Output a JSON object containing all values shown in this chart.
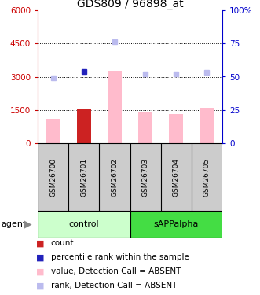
{
  "title": "GDS809 / 96898_at",
  "samples": [
    "GSM26700",
    "GSM26701",
    "GSM26702",
    "GSM26703",
    "GSM26704",
    "GSM26705"
  ],
  "bar_values": [
    1100,
    1530,
    3280,
    1380,
    1310,
    1580
  ],
  "bar_is_dark": [
    false,
    true,
    false,
    false,
    false,
    false
  ],
  "bar_color_light": "#ffbbcc",
  "bar_color_dark": "#cc2222",
  "rank_values": [
    2960,
    3220,
    4590,
    3140,
    3140,
    3180
  ],
  "rank_is_dark": [
    false,
    true,
    false,
    false,
    false,
    false
  ],
  "rank_color_light": "#bbbbee",
  "rank_color_dark": "#2222bb",
  "ylim_left": [
    0,
    6000
  ],
  "ylim_right": [
    0,
    100
  ],
  "yticks_left": [
    0,
    1500,
    3000,
    4500,
    6000
  ],
  "ytick_labels_left": [
    "0",
    "1500",
    "3000",
    "4500",
    "6000"
  ],
  "yticks_right": [
    0,
    25,
    50,
    75,
    100
  ],
  "ytick_labels_right": [
    "0",
    "25",
    "50",
    "75",
    "100%"
  ],
  "left_axis_color": "#cc0000",
  "right_axis_color": "#0000cc",
  "grid_yticks": [
    1500,
    3000,
    4500
  ],
  "control_label": "control",
  "sapp_label": "sAPPalpha",
  "control_color": "#ccffcc",
  "sapp_color": "#44dd44",
  "agent_label": "agent",
  "sample_label_bg": "#cccccc",
  "legend": [
    {
      "label": "count",
      "color": "#cc2222"
    },
    {
      "label": "percentile rank within the sample",
      "color": "#2222bb"
    },
    {
      "label": "value, Detection Call = ABSENT",
      "color": "#ffbbcc"
    },
    {
      "label": "rank, Detection Call = ABSENT",
      "color": "#bbbbee"
    }
  ]
}
